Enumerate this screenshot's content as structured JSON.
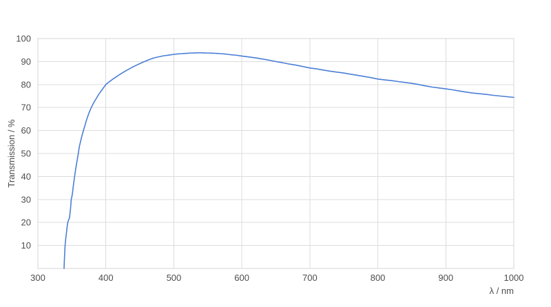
{
  "chart_data": {
    "type": "line",
    "title": "",
    "xlabel": "λ / nm",
    "ylabel": "Transmission / %",
    "xlim": [
      300,
      1000
    ],
    "ylim": [
      0,
      100
    ],
    "x_ticks": [
      300,
      400,
      500,
      600,
      700,
      800,
      900,
      1000
    ],
    "y_ticks": [
      10,
      20,
      30,
      40,
      50,
      60,
      70,
      80,
      90,
      100
    ],
    "grid": true,
    "legend": "none",
    "colors": {
      "line": "#4a7ed6",
      "grid": "#dcdcdc",
      "border": "#d4d4d4",
      "text": "#4d4d4d",
      "background": "#ffffff"
    },
    "series": [
      {
        "name": "Transmission",
        "points": [
          [
            338.5,
            0
          ],
          [
            339,
            4
          ],
          [
            340,
            10
          ],
          [
            341,
            13
          ],
          [
            342,
            15.5
          ],
          [
            343,
            18
          ],
          [
            344,
            20
          ],
          [
            345,
            21
          ],
          [
            346.5,
            22
          ],
          [
            348,
            26
          ],
          [
            349,
            30
          ],
          [
            350.5,
            32
          ],
          [
            352,
            35.5
          ],
          [
            354,
            40
          ],
          [
            356,
            44
          ],
          [
            358,
            47.5
          ],
          [
            359.5,
            50
          ],
          [
            361,
            53
          ],
          [
            363,
            55.5
          ],
          [
            365,
            58
          ],
          [
            367,
            60
          ],
          [
            369.5,
            62.5
          ],
          [
            372,
            65
          ],
          [
            375,
            67.5
          ],
          [
            378.5,
            70
          ],
          [
            382,
            72
          ],
          [
            385,
            73.5
          ],
          [
            388,
            75
          ],
          [
            392,
            76.8
          ],
          [
            395,
            78
          ],
          [
            400,
            80
          ],
          [
            405,
            81.2
          ],
          [
            410,
            82.3
          ],
          [
            415,
            83.3
          ],
          [
            420,
            84.3
          ],
          [
            425,
            85.2
          ],
          [
            430,
            86.1
          ],
          [
            435,
            86.9
          ],
          [
            440,
            87.7
          ],
          [
            445,
            88.4
          ],
          [
            450,
            89.1
          ],
          [
            455,
            89.8
          ],
          [
            460,
            90.4
          ],
          [
            465,
            91
          ],
          [
            470,
            91.5
          ],
          [
            475,
            91.9
          ],
          [
            480,
            92.2
          ],
          [
            485,
            92.5
          ],
          [
            490,
            92.7
          ],
          [
            495,
            92.9
          ],
          [
            500,
            93.1
          ],
          [
            505,
            93.3
          ],
          [
            510,
            93.4
          ],
          [
            515,
            93.5
          ],
          [
            520,
            93.6
          ],
          [
            525,
            93.7
          ],
          [
            530,
            93.75
          ],
          [
            535,
            93.8
          ],
          [
            540,
            93.8
          ],
          [
            545,
            93.75
          ],
          [
            550,
            93.7
          ],
          [
            555,
            93.65
          ],
          [
            560,
            93.6
          ],
          [
            565,
            93.5
          ],
          [
            570,
            93.4
          ],
          [
            575,
            93.3
          ],
          [
            580,
            93.1
          ],
          [
            585,
            92.9
          ],
          [
            590,
            92.8
          ],
          [
            595,
            92.6
          ],
          [
            600,
            92.4
          ],
          [
            610,
            92
          ],
          [
            620,
            91.6
          ],
          [
            630,
            91.1
          ],
          [
            640,
            90.6
          ],
          [
            650,
            90
          ],
          [
            660,
            89.5
          ],
          [
            670,
            88.9
          ],
          [
            680,
            88.4
          ],
          [
            690,
            87.8
          ],
          [
            700,
            87.2
          ],
          [
            710,
            86.8
          ],
          [
            720,
            86.3
          ],
          [
            730,
            85.8
          ],
          [
            740,
            85.4
          ],
          [
            750,
            85
          ],
          [
            760,
            84.5
          ],
          [
            770,
            84
          ],
          [
            780,
            83.5
          ],
          [
            790,
            83
          ],
          [
            800,
            82.4
          ],
          [
            810,
            82
          ],
          [
            820,
            81.7
          ],
          [
            830,
            81.3
          ],
          [
            840,
            80.9
          ],
          [
            850,
            80.5
          ],
          [
            860,
            80
          ],
          [
            870,
            79.4
          ],
          [
            880,
            78.9
          ],
          [
            890,
            78.5
          ],
          [
            900,
            78.1
          ],
          [
            910,
            77.7
          ],
          [
            920,
            77.2
          ],
          [
            930,
            76.7
          ],
          [
            940,
            76.3
          ],
          [
            950,
            76
          ],
          [
            960,
            75.7
          ],
          [
            970,
            75.3
          ],
          [
            980,
            75
          ],
          [
            990,
            74.7
          ],
          [
            1000,
            74.4
          ]
        ]
      }
    ]
  }
}
